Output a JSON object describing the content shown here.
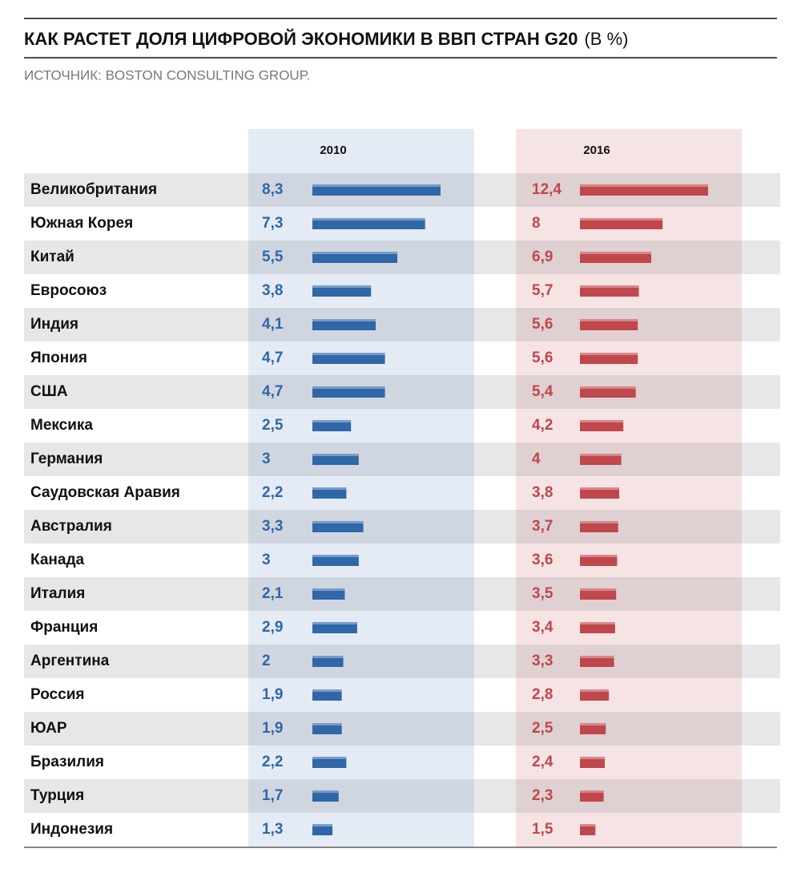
{
  "chart_data": {
    "type": "bar",
    "orientation": "horizontal",
    "title": "КАК РАСТЕТ ДОЛЯ ЦИФРОВОЙ ЭКОНОМИКИ В ВВП СТРАН G20",
    "unit": "(В %)",
    "source": "ИСТОЧНИК: BOSTON CONSULTING GROUP.",
    "categories": [
      "Великобритания",
      "Южная Корея",
      "Китай",
      "Евросоюз",
      "Индия",
      "Япония",
      "США",
      "Мексика",
      "Германия",
      "Саудовская Аравия",
      "Австралия",
      "Канада",
      "Италия",
      "Франция",
      "Аргентина",
      "Россия",
      "ЮАР",
      "Бразилия",
      "Турция",
      "Индонезия"
    ],
    "series": [
      {
        "name": "2010",
        "color": "#2f67a8",
        "values": [
          8.3,
          7.3,
          5.5,
          3.8,
          4.1,
          4.7,
          4.7,
          2.5,
          3,
          2.2,
          3.3,
          3,
          2.1,
          2.9,
          2,
          1.9,
          1.9,
          2.2,
          1.7,
          1.3
        ],
        "value_labels": [
          "8,3",
          "7,3",
          "5,5",
          "3,8",
          "4,1",
          "4,7",
          "4,7",
          "2,5",
          "3",
          "2,2",
          "3,3",
          "3",
          "2,1",
          "2,9",
          "2",
          "1,9",
          "1,9",
          "2,2",
          "1,7",
          "1,3"
        ]
      },
      {
        "name": "2016",
        "color": "#c0474c",
        "values": [
          12.4,
          8,
          6.9,
          5.7,
          5.6,
          5.6,
          5.4,
          4.2,
          4,
          3.8,
          3.7,
          3.6,
          3.5,
          3.4,
          3.3,
          2.8,
          2.5,
          2.4,
          2.3,
          1.5
        ],
        "value_labels": [
          "12,4",
          "8",
          "6,9",
          "5,7",
          "5,6",
          "5,6",
          "5,4",
          "4,2",
          "4",
          "3,8",
          "3,7",
          "3,6",
          "3,5",
          "3,4",
          "3,3",
          "2,8",
          "2,5",
          "2,4",
          "2,3",
          "1,5"
        ]
      }
    ]
  }
}
